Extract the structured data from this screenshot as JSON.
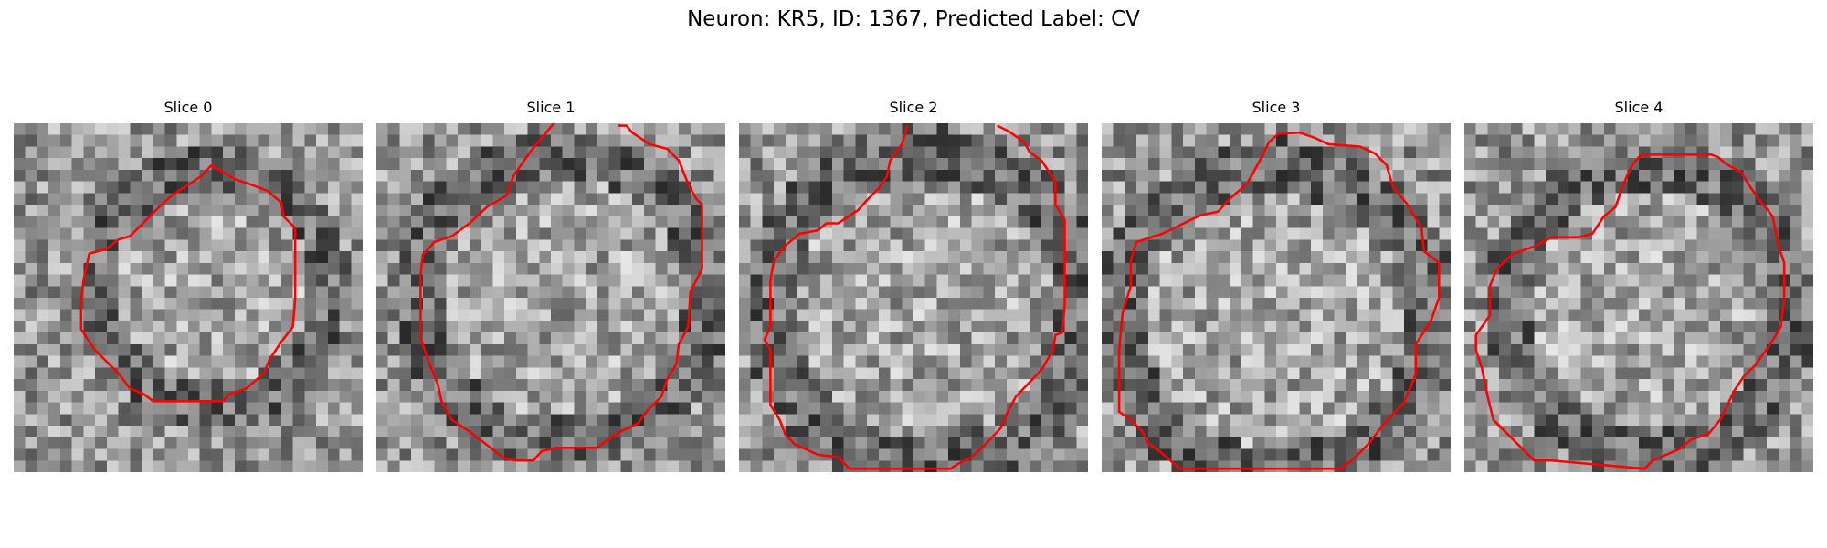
{
  "figure": {
    "title": "Neuron: KR5, ID: 1367, Predicted Label: CV",
    "contour_color": "#ff0000",
    "grid_size": 30,
    "panels": [
      {
        "title": "Slice 0"
      },
      {
        "title": "Slice 1"
      },
      {
        "title": "Slice 2"
      },
      {
        "title": "Slice 3"
      },
      {
        "title": "Slice 4"
      }
    ]
  }
}
